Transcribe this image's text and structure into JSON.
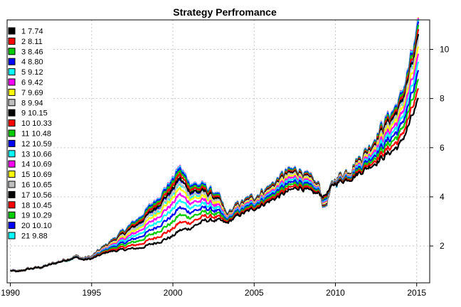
{
  "chart_data": {
    "type": "line",
    "title": "Strategy Perfromance",
    "xlabel": "",
    "ylabel": "",
    "xlim": [
      1989.8,
      2015.8
    ],
    "ylim": [
      0.5,
      11.2
    ],
    "x_ticks": [
      1990,
      1995,
      2000,
      2005,
      2010,
      2015
    ],
    "y_ticks": [
      2,
      4,
      6,
      8,
      10
    ],
    "grid": true,
    "legend_position": "top-left",
    "anchors_x": [
      1990.0,
      1990.5,
      1991.0,
      1992.0,
      1993.0,
      1994.0,
      1994.5,
      1995.0,
      1996.0,
      1997.0,
      1998.0,
      1999.0,
      2000.0,
      2000.4,
      2001.0,
      2002.0,
      2002.8,
      2003.3,
      2004.0,
      2005.0,
      2006.0,
      2007.0,
      2007.8,
      2008.5,
      2009.0,
      2009.3,
      2010.0,
      2011.0,
      2012.0,
      2013.0,
      2014.0,
      2015.0,
      2015.1
    ],
    "base_path": [
      1.0,
      0.95,
      1.05,
      1.15,
      1.35,
      1.55,
      1.45,
      1.5,
      1.85,
      2.05,
      2.25,
      2.6,
      3.0,
      3.3,
      3.2,
      3.4,
      3.3,
      3.0,
      3.35,
      3.65,
      4.0,
      4.4,
      4.6,
      4.3,
      4.2,
      3.9,
      4.6,
      4.9,
      5.4,
      6.0,
      6.6,
      8.4,
      8.5
    ],
    "spread_profile": [
      0.0,
      0.0,
      0.0,
      0.0,
      0.02,
      0.05,
      0.05,
      0.08,
      0.3,
      0.7,
      1.15,
      1.6,
      2.1,
      2.35,
      1.7,
      1.25,
      0.9,
      0.3,
      0.4,
      0.45,
      0.55,
      0.75,
      0.65,
      0.45,
      0.3,
      -0.45,
      0.15,
      0.4,
      0.7,
      1.25,
      1.65,
      2.5,
      2.65
    ],
    "series": [
      {
        "name": "1",
        "final": 7.74,
        "color": "#000000",
        "legend": "1  7.74"
      },
      {
        "name": "2",
        "final": 8.11,
        "color": "#ff0000",
        "legend": "2  8.11"
      },
      {
        "name": "3",
        "final": 8.46,
        "color": "#00cd00",
        "legend": "3  8.46"
      },
      {
        "name": "4",
        "final": 8.8,
        "color": "#0000ff",
        "legend": "4  8.80"
      },
      {
        "name": "5",
        "final": 9.12,
        "color": "#00ffff",
        "legend": "5  9.12"
      },
      {
        "name": "6",
        "final": 9.42,
        "color": "#ff00ff",
        "legend": "6  9.42"
      },
      {
        "name": "7",
        "final": 9.69,
        "color": "#ffff00",
        "legend": "7  9.69"
      },
      {
        "name": "8",
        "final": 9.94,
        "color": "#bebebe",
        "legend": "8  9.94"
      },
      {
        "name": "9",
        "final": 10.15,
        "color": "#000000",
        "legend": "9 10.15"
      },
      {
        "name": "10",
        "final": 10.33,
        "color": "#ff0000",
        "legend": "10 10.33"
      },
      {
        "name": "11",
        "final": 10.48,
        "color": "#00cd00",
        "legend": "11 10.48"
      },
      {
        "name": "12",
        "final": 10.59,
        "color": "#0000ff",
        "legend": "12 10.59"
      },
      {
        "name": "13",
        "final": 10.66,
        "color": "#00ffff",
        "legend": "13 10.66"
      },
      {
        "name": "14",
        "final": 10.69,
        "color": "#ff00ff",
        "legend": "14 10.69"
      },
      {
        "name": "15",
        "final": 10.69,
        "color": "#ffff00",
        "legend": "15 10.69"
      },
      {
        "name": "16",
        "final": 10.65,
        "color": "#bebebe",
        "legend": "16 10.65"
      },
      {
        "name": "17",
        "final": 10.56,
        "color": "#000000",
        "legend": "17 10.56"
      },
      {
        "name": "18",
        "final": 10.45,
        "color": "#ff0000",
        "legend": "18 10.45"
      },
      {
        "name": "19",
        "final": 10.29,
        "color": "#00cd00",
        "legend": "19 10.29"
      },
      {
        "name": "20",
        "final": 10.1,
        "color": "#0000ff",
        "legend": "20 10.10"
      },
      {
        "name": "21",
        "final": 9.88,
        "color": "#00ffff",
        "legend": "21  9.88"
      }
    ]
  }
}
